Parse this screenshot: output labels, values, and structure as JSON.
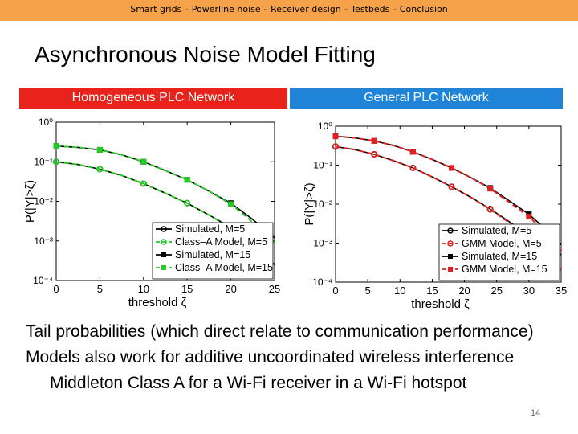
{
  "header": {
    "breadcrumb": "Smart grids – Powerline noise – Receiver design – Testbeds – Conclusion"
  },
  "slide": {
    "title": "Asynchronous Noise Model Fitting",
    "panel_left_label": "Homogeneous PLC Network",
    "panel_right_label": "General PLC Network",
    "bullets": [
      "Tail probabilities (which direct relate to communication performance)",
      "Models also work for additive uncoordinated wireless interference",
      "Middleton Class A for a Wi-Fi receiver in a Wi-Fi hotspot"
    ],
    "page_number": "14"
  },
  "chart_data": [
    {
      "type": "line",
      "xlabel": "threshold ζ",
      "ylabel": "P(|Y|>ζ)",
      "xlim": [
        0,
        25
      ],
      "ylim": [
        0.0001,
        1
      ],
      "y_scale": "log",
      "x_ticks": [
        "0",
        "5",
        "10",
        "15",
        "20",
        "25"
      ],
      "y_ticks": [
        "10⁰",
        "10⁻¹",
        "10⁻²",
        "10⁻³",
        "10⁻⁴"
      ],
      "legend_position": "bottom-right",
      "series": [
        {
          "name": "Simulated, M=5",
          "color": "#000000",
          "dash": "solid",
          "marker": "circle",
          "x": [
            0,
            2.5,
            5,
            7.5,
            10,
            12.5,
            15,
            17.5,
            20,
            22.5,
            25
          ],
          "y": [
            0.1,
            0.085,
            0.065,
            0.045,
            0.028,
            0.016,
            0.009,
            0.0045,
            0.0022,
            0.0008,
            0.00025
          ]
        },
        {
          "name": "Class–A Model, M=5",
          "color": "#22cc22",
          "dash": "dashed",
          "marker": "circle",
          "x": [
            0,
            2.5,
            5,
            7.5,
            10,
            12.5,
            15,
            17.5,
            20,
            22.5,
            25
          ],
          "y": [
            0.1,
            0.085,
            0.065,
            0.045,
            0.028,
            0.016,
            0.009,
            0.0045,
            0.0021,
            0.00075,
            0.0002
          ]
        },
        {
          "name": "Simulated, M=15",
          "color": "#000000",
          "dash": "solid",
          "marker": "square",
          "x": [
            0,
            2.5,
            5,
            7.5,
            10,
            12.5,
            15,
            17.5,
            20,
            22.5,
            25
          ],
          "y": [
            0.25,
            0.23,
            0.2,
            0.15,
            0.1,
            0.06,
            0.035,
            0.018,
            0.009,
            0.0035,
            0.0012
          ]
        },
        {
          "name": "Class–A Model, M=15",
          "color": "#22cc22",
          "dash": "dashed",
          "marker": "square",
          "x": [
            0,
            2.5,
            5,
            7.5,
            10,
            12.5,
            15,
            17.5,
            20,
            22.5,
            25
          ],
          "y": [
            0.25,
            0.23,
            0.2,
            0.15,
            0.1,
            0.06,
            0.035,
            0.018,
            0.0085,
            0.003,
            0.0009
          ]
        }
      ]
    },
    {
      "type": "line",
      "xlabel": "threshold ζ",
      "ylabel": "P(|Y|>ζ)",
      "xlim": [
        0,
        35
      ],
      "ylim": [
        0.0001,
        1
      ],
      "y_scale": "log",
      "x_ticks": [
        "0",
        "5",
        "10",
        "15",
        "20",
        "25",
        "30",
        "35"
      ],
      "y_ticks": [
        "10⁰",
        "10⁻¹",
        "10⁻²",
        "10⁻³",
        "10⁻⁴"
      ],
      "legend_position": "bottom-right",
      "series": [
        {
          "name": "Simulated, M=5",
          "color": "#000000",
          "dash": "solid",
          "marker": "circle",
          "x": [
            0,
            3,
            6,
            9,
            12,
            15,
            18,
            21,
            24,
            27,
            30,
            33,
            35
          ],
          "y": [
            0.3,
            0.25,
            0.19,
            0.13,
            0.085,
            0.05,
            0.028,
            0.015,
            0.0075,
            0.0035,
            0.0015,
            0.0008,
            0.0005
          ]
        },
        {
          "name": "GMM Model, M=5",
          "color": "#e02020",
          "dash": "dashed",
          "marker": "circle",
          "x": [
            0,
            3,
            6,
            9,
            12,
            15,
            18,
            21,
            24,
            27,
            30,
            33,
            35
          ],
          "y": [
            0.3,
            0.25,
            0.19,
            0.13,
            0.085,
            0.05,
            0.028,
            0.015,
            0.0073,
            0.0033,
            0.0013,
            0.0005,
            0.0002
          ]
        },
        {
          "name": "Simulated, M=15",
          "color": "#000000",
          "dash": "solid",
          "marker": "square",
          "x": [
            0,
            3,
            6,
            9,
            12,
            15,
            18,
            21,
            24,
            27,
            30,
            33,
            35
          ],
          "y": [
            0.55,
            0.5,
            0.42,
            0.32,
            0.22,
            0.14,
            0.085,
            0.048,
            0.026,
            0.012,
            0.0055,
            0.002,
            0.0009
          ]
        },
        {
          "name": "GMM Model, M=15",
          "color": "#e02020",
          "dash": "dashed",
          "marker": "square",
          "x": [
            0,
            3,
            6,
            9,
            12,
            15,
            18,
            21,
            24,
            27,
            30,
            33,
            35
          ],
          "y": [
            0.55,
            0.5,
            0.42,
            0.32,
            0.22,
            0.14,
            0.085,
            0.048,
            0.025,
            0.011,
            0.0048,
            0.0016,
            0.0006
          ]
        }
      ]
    }
  ]
}
